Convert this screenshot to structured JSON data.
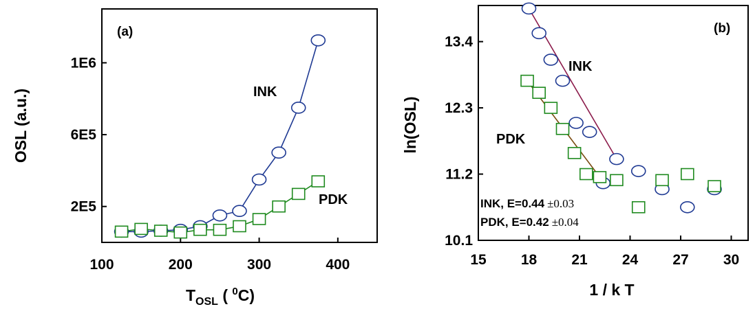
{
  "colors": {
    "ink": "#1f3a93",
    "pdk": "#1e8a1e",
    "ink_fit": "#8b1a4a",
    "pdk_fit": "#7a4a10"
  },
  "chart_data": [
    {
      "type": "line",
      "panel_label": "(a)",
      "xlabel": {
        "main": "T",
        "sub": "OSL",
        "open": " ( ",
        "sup": "0",
        "close": "C)"
      },
      "ylabel": "OSL (a.u.)",
      "xlim": [
        100,
        450
      ],
      "ylim": [
        0,
        1300000
      ],
      "xticks": [
        100,
        200,
        300,
        400
      ],
      "xtick_labels": [
        "100",
        "200",
        "300",
        "400"
      ],
      "yticks": [
        200000,
        600000,
        1000000
      ],
      "ytick_labels": [
        "2E5",
        "6E5",
        "1E6"
      ],
      "series": [
        {
          "name": "INK",
          "marker": "circle",
          "connected": true,
          "x": [
            125,
            150,
            175,
            200,
            225,
            250,
            275,
            300,
            325,
            350,
            375
          ],
          "y": [
            60000,
            60000,
            65000,
            70000,
            90000,
            150000,
            175000,
            350000,
            500000,
            750000,
            1125000
          ]
        },
        {
          "name": "PDK",
          "marker": "square",
          "connected": true,
          "x": [
            125,
            150,
            175,
            200,
            225,
            250,
            275,
            300,
            325,
            350,
            375
          ],
          "y": [
            60000,
            75000,
            65000,
            55000,
            70000,
            70000,
            90000,
            130000,
            200000,
            270000,
            340000
          ]
        }
      ],
      "series_labels": {
        "ink": "INK",
        "pdk": "PDK"
      }
    },
    {
      "type": "scatter",
      "panel_label": "(b)",
      "xlabel": "1 / k T",
      "ylabel": "ln(OSL)",
      "xlim": [
        15,
        31
      ],
      "ylim": [
        10.1,
        14.0
      ],
      "xticks": [
        15,
        18,
        21,
        24,
        27,
        30
      ],
      "xtick_labels": [
        "15",
        "18",
        "21",
        "24",
        "27",
        "30"
      ],
      "yticks": [
        10.1,
        11.2,
        12.3,
        13.4
      ],
      "ytick_labels": [
        "10.1",
        "11.2",
        "12.3",
        "13.4"
      ],
      "series": [
        {
          "name": "INK",
          "marker": "circle",
          "x": [
            18.0,
            18.6,
            19.3,
            20.0,
            20.8,
            21.6,
            22.4,
            23.2,
            24.5,
            25.9,
            27.4,
            29.0
          ],
          "y": [
            13.95,
            13.54,
            13.1,
            12.75,
            12.05,
            11.9,
            11.05,
            11.45,
            11.25,
            10.95,
            10.65,
            10.95
          ]
        },
        {
          "name": "PDK",
          "marker": "square",
          "x": [
            17.9,
            18.6,
            19.3,
            20.0,
            20.7,
            21.4,
            22.2,
            23.2,
            24.5,
            25.9,
            27.4,
            29.0
          ],
          "y": [
            12.75,
            12.55,
            12.3,
            11.95,
            11.55,
            11.2,
            11.15,
            11.1,
            10.65,
            11.1,
            11.2,
            11.0
          ]
        }
      ],
      "fits": [
        {
          "series": "INK",
          "x": [
            18.0,
            23.2
          ],
          "y": [
            13.95,
            11.45
          ]
        },
        {
          "series": "PDK",
          "x": [
            17.9,
            22.2
          ],
          "y": [
            12.75,
            11.15
          ]
        }
      ],
      "series_labels": {
        "ink": "INK",
        "pdk": "PDK"
      },
      "annotations": [
        {
          "label": "INK, E=0.44",
          "pm": "±0.03"
        },
        {
          "label": "PDK, E=0.42",
          "pm": "±0.04"
        }
      ]
    }
  ]
}
